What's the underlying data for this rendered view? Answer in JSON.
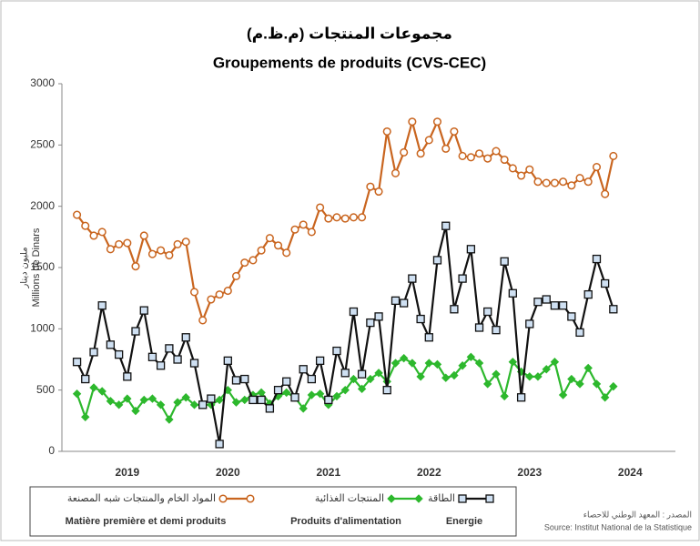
{
  "chart_data": {
    "type": "line",
    "title_ar": "مجموعات المنتجات (م.ظ.م)",
    "title": "Groupements de produits (CVS-CEC)",
    "ylabel": "Millions de Dinars",
    "ylabel_ar": "مليون دينار",
    "source_ar": "المصدر : المعهد الوطني للاحصاء",
    "source": "Source: Institut National de la Statistique",
    "x": [
      2019,
      2019.083,
      2019.167,
      2019.25,
      2019.333,
      2019.417,
      2019.5,
      2019.583,
      2019.667,
      2019.75,
      2019.833,
      2019.917,
      2020,
      2020.083,
      2020.167,
      2020.25,
      2020.333,
      2020.417,
      2020.5,
      2020.583,
      2020.667,
      2020.75,
      2020.833,
      2020.917,
      2021,
      2021.083,
      2021.167,
      2021.25,
      2021.333,
      2021.417,
      2021.5,
      2021.583,
      2021.667,
      2021.75,
      2021.833,
      2021.917,
      2022,
      2022.083,
      2022.167,
      2022.25,
      2022.333,
      2022.417,
      2022.5,
      2022.583,
      2022.667,
      2022.75,
      2022.833,
      2022.917,
      2023,
      2023.083,
      2023.167,
      2023.25,
      2023.333,
      2023.417,
      2023.5,
      2023.583,
      2023.667,
      2023.75,
      2023.833,
      2023.917,
      2024,
      2024.083,
      2024.167,
      2024.25,
      2024.333
    ],
    "xlim": [
      2018.85,
      2024.95
    ],
    "xticks": [
      {
        "value": 2019.5,
        "label": "2019"
      },
      {
        "value": 2020.5,
        "label": "2020"
      },
      {
        "value": 2021.5,
        "label": "2021"
      },
      {
        "value": 2022.5,
        "label": "2022"
      },
      {
        "value": 2023.5,
        "label": "2023"
      },
      {
        "value": 2024.5,
        "label": "2024"
      }
    ],
    "ylim": [
      0,
      3000
    ],
    "yticks": [
      0,
      500,
      1000,
      1500,
      2000,
      2500,
      3000
    ],
    "series": [
      {
        "name": "Matière première et demi produits",
        "name_ar": "المواد الخام والمنتجات شبه المصنعة",
        "color": "#c9651f",
        "marker": "circle",
        "values": [
          1930,
          1840,
          1760,
          1790,
          1650,
          1690,
          1700,
          1510,
          1760,
          1610,
          1640,
          1600,
          1690,
          1710,
          1300,
          1070,
          1240,
          1280,
          1310,
          1430,
          1540,
          1560,
          1640,
          1740,
          1680,
          1620,
          1810,
          1850,
          1790,
          1990,
          1900,
          1910,
          1900,
          1910,
          1910,
          2160,
          2120,
          2610,
          2270,
          2440,
          2690,
          2430,
          2540,
          2690,
          2470,
          2610,
          2410,
          2400,
          2430,
          2390,
          2450,
          2380,
          2310,
          2250,
          2300,
          2200,
          2190,
          2190,
          2200,
          2170,
          2230,
          2200,
          2320,
          2100,
          2410
        ]
      },
      {
        "name": "Produits d'alimentation",
        "name_ar": "المنتجات الغذائية",
        "color": "#2db82d",
        "marker": "diamond",
        "values": [
          470,
          280,
          520,
          490,
          410,
          380,
          430,
          330,
          420,
          430,
          380,
          260,
          400,
          440,
          380,
          380,
          380,
          420,
          500,
          400,
          420,
          460,
          480,
          390,
          450,
          480,
          440,
          350,
          460,
          470,
          380,
          450,
          500,
          590,
          510,
          590,
          640,
          570,
          720,
          760,
          720,
          610,
          720,
          710,
          600,
          620,
          700,
          770,
          720,
          550,
          630,
          450,
          730,
          650,
          610,
          610,
          670,
          730,
          460,
          590,
          550,
          680,
          550,
          440,
          530
        ]
      },
      {
        "name": "Energie",
        "name_ar": "الطاقة",
        "color": "#111111",
        "marker": "square",
        "values": [
          730,
          590,
          810,
          1190,
          870,
          790,
          610,
          980,
          1150,
          770,
          700,
          840,
          750,
          930,
          720,
          380,
          430,
          60,
          740,
          580,
          590,
          420,
          420,
          350,
          500,
          570,
          440,
          670,
          590,
          740,
          420,
          820,
          640,
          1140,
          630,
          1050,
          1100,
          500,
          1230,
          1210,
          1410,
          1080,
          930,
          1560,
          1840,
          1160,
          1410,
          1650,
          1010,
          1140,
          990,
          1550,
          1290,
          440,
          1040,
          1220,
          1240,
          1190,
          1190,
          1100,
          970,
          1280,
          1570,
          1370,
          1160
        ]
      }
    ]
  }
}
